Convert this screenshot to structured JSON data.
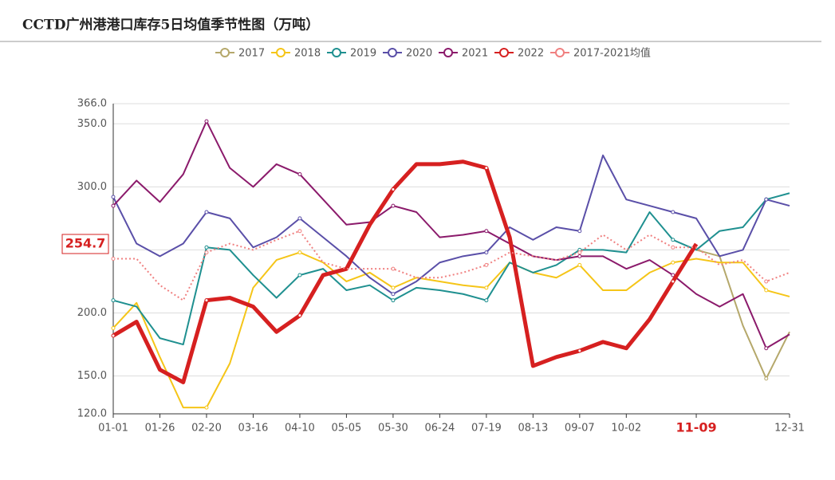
{
  "chart_data": {
    "type": "line",
    "title": "CCTD广州港港口库存5日均值季节性图（万吨）",
    "categories": [
      "01-01",
      null,
      "01-26",
      null,
      "02-20",
      null,
      "03-16",
      null,
      "04-10",
      null,
      "05-05",
      null,
      "05-30",
      null,
      "06-24",
      null,
      "07-19",
      null,
      "08-13",
      null,
      "09-07",
      null,
      "10-02",
      null,
      null,
      "11-09",
      null,
      null,
      null,
      "12-31"
    ],
    "ylim": [
      120,
      366
    ],
    "yticks": [
      {
        "value": 120,
        "label": "120.0"
      },
      {
        "value": 150,
        "label": "150.0"
      },
      {
        "value": 200,
        "label": "200.0"
      },
      {
        "value": 250,
        "label": "250.0"
      },
      {
        "value": 300,
        "label": "300.0"
      },
      {
        "value": 350,
        "label": "350.0"
      },
      {
        "value": 366,
        "label": "366.0"
      }
    ],
    "grid": true,
    "axis_pointer_y": {
      "value": 254.7,
      "label": "254.7"
    },
    "series": [
      {
        "name": "2017",
        "color": "#b5a86b",
        "values": [
          null,
          null,
          null,
          null,
          null,
          null,
          null,
          null,
          null,
          null,
          null,
          null,
          null,
          null,
          null,
          null,
          null,
          null,
          null,
          null,
          null,
          null,
          null,
          null,
          null,
          250,
          245,
          190,
          148,
          185
        ]
      },
      {
        "name": "2018",
        "color": "#f5c518",
        "values": [
          188,
          208,
          165,
          125,
          125,
          160,
          220,
          242,
          248,
          240,
          225,
          232,
          220,
          228,
          225,
          222,
          220,
          240,
          232,
          228,
          238,
          218,
          218,
          232,
          240,
          243,
          240,
          240,
          218,
          213
        ]
      },
      {
        "name": "2019",
        "color": "#1f9090",
        "values": [
          210,
          205,
          180,
          175,
          252,
          250,
          230,
          212,
          230,
          235,
          218,
          222,
          210,
          220,
          218,
          215,
          210,
          240,
          232,
          238,
          250,
          250,
          248,
          280,
          258,
          250,
          265,
          268,
          290,
          295
        ]
      },
      {
        "name": "2020",
        "color": "#5a4fa8",
        "values": [
          292,
          255,
          245,
          255,
          280,
          275,
          252,
          260,
          275,
          260,
          245,
          228,
          215,
          225,
          240,
          245,
          248,
          268,
          258,
          268,
          265,
          325,
          290,
          285,
          280,
          275,
          245,
          250,
          290,
          285
        ]
      },
      {
        "name": "2021",
        "color": "#8b1a6b",
        "values": [
          285,
          305,
          288,
          310,
          352,
          315,
          300,
          318,
          310,
          290,
          270,
          272,
          285,
          280,
          260,
          262,
          265,
          255,
          245,
          242,
          245,
          245,
          235,
          242,
          230,
          215,
          205,
          215,
          172,
          183
        ]
      },
      {
        "name": "2022",
        "color": "#d62020",
        "values": [
          182,
          193,
          155,
          145,
          210,
          212,
          205,
          185,
          198,
          230,
          235,
          270,
          298,
          318,
          318,
          320,
          315,
          260,
          158,
          165,
          170,
          177,
          172,
          195,
          225,
          254.7,
          null,
          null,
          null,
          null
        ]
      },
      {
        "name": "2017-2021均值",
        "color": "#f08080",
        "dashed": true,
        "values": [
          243,
          243,
          222,
          210,
          248,
          255,
          250,
          258,
          265,
          240,
          235,
          235,
          235,
          228,
          228,
          232,
          238,
          248,
          245,
          242,
          248,
          262,
          250,
          262,
          252,
          252,
          238,
          242,
          225,
          232
        ]
      }
    ]
  }
}
